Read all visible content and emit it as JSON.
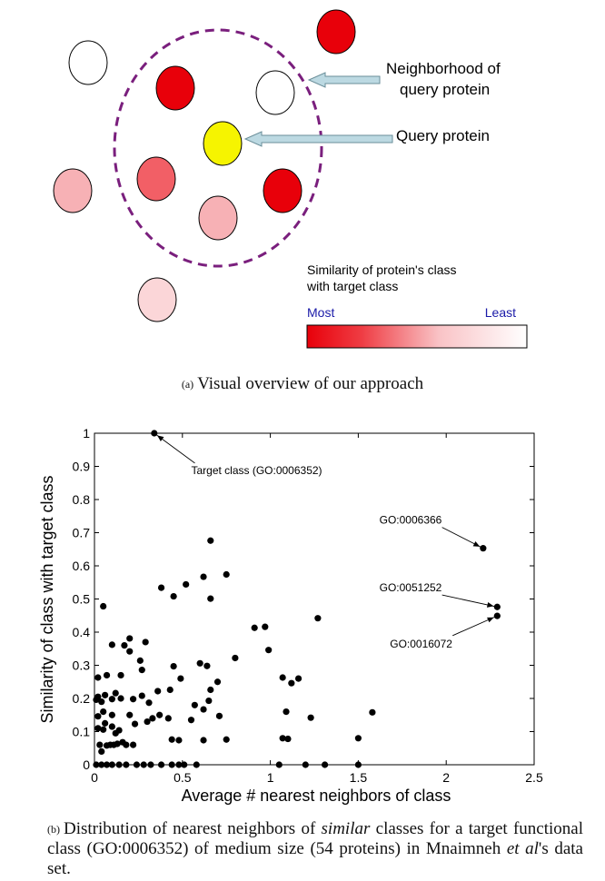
{
  "figure_a": {
    "labels": {
      "neighborhood_line1": "Neighborhood of",
      "neighborhood_line2": "query protein",
      "query": "Query protein",
      "legend_title_line1": "Similarity of protein's class",
      "legend_title_line2": "with target class",
      "legend_most": "Most",
      "legend_least": "Least"
    },
    "colors": {
      "strong": "#e8000a",
      "medium": "#f25f66",
      "light": "#f7b1b5",
      "pale": "#fbd6d8",
      "white": "#ffffff",
      "query": "#f6f400",
      "ring": "#7a1f7d",
      "arrow": "#bcd9e2",
      "legend_text": "#1a1aa8"
    },
    "caption_tag": "(a)",
    "caption_text": "Visual overview of our approach"
  },
  "chart_data": {
    "type": "scatter",
    "xlabel": "Average # nearest neighbors of class",
    "ylabel": "Similarity of class with target class",
    "xlim": [
      0,
      2.5
    ],
    "ylim": [
      0,
      1
    ],
    "xticks": [
      "0",
      "0.5",
      "1",
      "1.5",
      "2",
      "2.5"
    ],
    "yticks": [
      "0",
      "0.1",
      "0.2",
      "0.3",
      "0.4",
      "0.5",
      "0.6",
      "0.7",
      "0.8",
      "0.9",
      "1"
    ],
    "grid": false,
    "points": [
      [
        0.34,
        1.0
      ],
      [
        2.21,
        0.653
      ],
      [
        2.29,
        0.476
      ],
      [
        2.29,
        0.449
      ],
      [
        0.66,
        0.676
      ],
      [
        0.62,
        0.567
      ],
      [
        0.75,
        0.574
      ],
      [
        0.38,
        0.534
      ],
      [
        0.52,
        0.544
      ],
      [
        0.45,
        0.508
      ],
      [
        0.66,
        0.501
      ],
      [
        0.05,
        0.478
      ],
      [
        1.27,
        0.442
      ],
      [
        0.91,
        0.413
      ],
      [
        0.97,
        0.416
      ],
      [
        0.8,
        0.322
      ],
      [
        0.99,
        0.346
      ],
      [
        0.6,
        0.306
      ],
      [
        0.64,
        0.298
      ],
      [
        0.45,
        0.297
      ],
      [
        0.49,
        0.26
      ],
      [
        0.7,
        0.25
      ],
      [
        0.66,
        0.226
      ],
      [
        0.43,
        0.226
      ],
      [
        0.36,
        0.222
      ],
      [
        0.29,
        0.37
      ],
      [
        0.1,
        0.362
      ],
      [
        0.17,
        0.36
      ],
      [
        0.2,
        0.381
      ],
      [
        0.2,
        0.342
      ],
      [
        0.26,
        0.314
      ],
      [
        0.27,
        0.286
      ],
      [
        0.15,
        0.27
      ],
      [
        0.07,
        0.27
      ],
      [
        0.02,
        0.263
      ],
      [
        0.02,
        0.205
      ],
      [
        0.06,
        0.21
      ],
      [
        0.12,
        0.216
      ],
      [
        0.15,
        0.2
      ],
      [
        0.22,
        0.198
      ],
      [
        0.27,
        0.208
      ],
      [
        0.31,
        0.187
      ],
      [
        0.37,
        0.15
      ],
      [
        0.3,
        0.13
      ],
      [
        0.33,
        0.14
      ],
      [
        0.42,
        0.14
      ],
      [
        0.55,
        0.135
      ],
      [
        0.57,
        0.18
      ],
      [
        0.62,
        0.167
      ],
      [
        0.65,
        0.193
      ],
      [
        0.71,
        0.147
      ],
      [
        0.75,
        0.076
      ],
      [
        0.62,
        0.074
      ],
      [
        0.44,
        0.076
      ],
      [
        0.48,
        0.074
      ],
      [
        0.2,
        0.15
      ],
      [
        0.23,
        0.123
      ],
      [
        0.1,
        0.15
      ],
      [
        0.05,
        0.16
      ],
      [
        0.02,
        0.146
      ],
      [
        0.06,
        0.125
      ],
      [
        0.1,
        0.115
      ],
      [
        0.14,
        0.104
      ],
      [
        0.12,
        0.095
      ],
      [
        0.02,
        0.11
      ],
      [
        0.05,
        0.106
      ],
      [
        0.1,
        0.198
      ],
      [
        0.04,
        0.19
      ],
      [
        0.01,
        0.196
      ],
      [
        0.03,
        0.06
      ],
      [
        0.07,
        0.058
      ],
      [
        0.09,
        0.06
      ],
      [
        0.11,
        0.06
      ],
      [
        0.13,
        0.063
      ],
      [
        0.16,
        0.068
      ],
      [
        0.18,
        0.06
      ],
      [
        0.22,
        0.06
      ],
      [
        0.04,
        0.04
      ],
      [
        1.07,
        0.263
      ],
      [
        1.12,
        0.246
      ],
      [
        1.16,
        0.26
      ],
      [
        1.23,
        0.142
      ],
      [
        1.09,
        0.16
      ],
      [
        1.07,
        0.08
      ],
      [
        1.1,
        0.078
      ],
      [
        1.58,
        0.158
      ],
      [
        1.5,
        0.08
      ],
      [
        0.01,
        0.0
      ],
      [
        0.04,
        0.0
      ],
      [
        0.07,
        0.0
      ],
      [
        0.1,
        0.0
      ],
      [
        0.14,
        0.0
      ],
      [
        0.18,
        0.0
      ],
      [
        0.24,
        0.0
      ],
      [
        0.28,
        0.0
      ],
      [
        0.32,
        0.0
      ],
      [
        0.38,
        0.0
      ],
      [
        0.44,
        0.0
      ],
      [
        0.48,
        0.0
      ],
      [
        0.51,
        0.0
      ],
      [
        0.58,
        0.0
      ],
      [
        1.05,
        0.0
      ],
      [
        1.2,
        0.0
      ],
      [
        1.31,
        0.0
      ],
      [
        1.5,
        0.0
      ]
    ],
    "annotations": [
      {
        "text": "Target class (GO:0006352)",
        "point": [
          0.34,
          1.0
        ],
        "label": [
          0.55,
          0.877
        ]
      },
      {
        "text": "GO:0006366",
        "point": [
          2.21,
          0.653
        ],
        "label": [
          1.62,
          0.727
        ]
      },
      {
        "text": "GO:0051252",
        "point": [
          2.29,
          0.476
        ],
        "label": [
          1.62,
          0.523
        ]
      },
      {
        "text": "GO:0016072",
        "point": [
          2.29,
          0.449
        ],
        "label": [
          1.68,
          0.354
        ]
      }
    ]
  },
  "figure_b": {
    "caption_tag": "(b)",
    "caption_html_parts": {
      "p1": "Distribution of nearest neighbors of ",
      "em1": "similar",
      "p2": " classes for a target functional class (GO:0006352) of medium size (54 proteins) in Mnaimneh ",
      "em2": "et al",
      "p3": "'s data set."
    }
  }
}
